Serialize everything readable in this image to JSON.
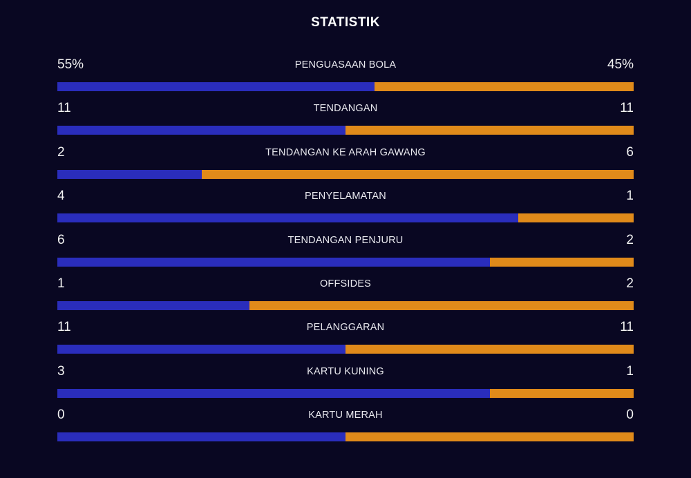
{
  "title": "STATISTIK",
  "colors": {
    "background": "#090722",
    "home": "#2a2dbc",
    "away": "#e08a1a"
  },
  "stats": [
    {
      "label": "PENGUASAAN BOLA",
      "home": "55%",
      "away": "45%",
      "home_share": 0.55
    },
    {
      "label": "TENDANGAN",
      "home": "11",
      "away": "11",
      "home_share": 0.5
    },
    {
      "label": "TENDANGAN KE ARAH GAWANG",
      "home": "2",
      "away": "6",
      "home_share": 0.25
    },
    {
      "label": "PENYELAMATAN",
      "home": "4",
      "away": "1",
      "home_share": 0.8
    },
    {
      "label": "TENDANGAN PENJURU",
      "home": "6",
      "away": "2",
      "home_share": 0.75
    },
    {
      "label": "OFFSIDES",
      "home": "1",
      "away": "2",
      "home_share": 0.3333
    },
    {
      "label": "PELANGGARAN",
      "home": "11",
      "away": "11",
      "home_share": 0.5
    },
    {
      "label": "KARTU KUNING",
      "home": "3",
      "away": "1",
      "home_share": 0.75
    },
    {
      "label": "KARTU MERAH",
      "home": "0",
      "away": "0",
      "home_share": 0.5
    }
  ]
}
